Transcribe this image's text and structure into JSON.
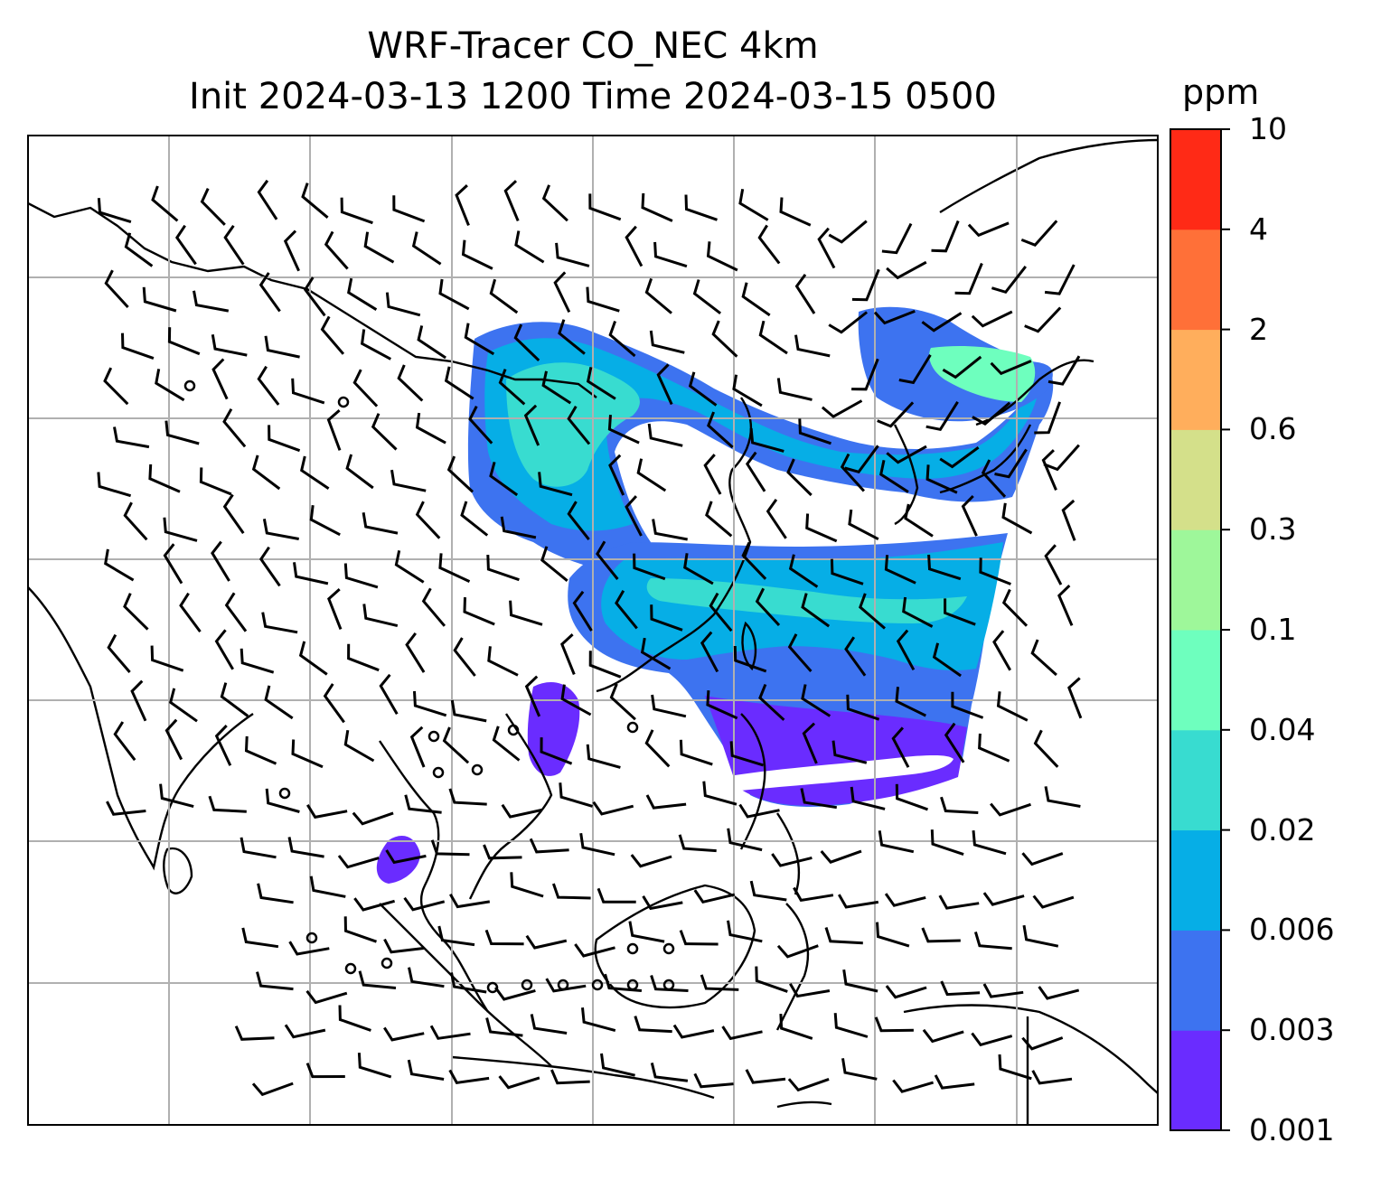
{
  "title": {
    "line1": "WRF-Tracer CO_NEC 4km",
    "line2": "Init 2024-03-13 1200 Time 2024-03-15 0500"
  },
  "colorbar": {
    "units": "ppm",
    "levels": [
      "0.001",
      "0.003",
      "0.006",
      "0.02",
      "0.04",
      "0.1",
      "0.3",
      "0.6",
      "2",
      "4",
      "10"
    ],
    "colors": [
      "#6a2cff",
      "#3d73f0",
      "#06aee6",
      "#38dcd0",
      "#6effbe",
      "#9ef79a",
      "#d4e08a",
      "#ffae5c",
      "#ff7038",
      "#ff2a16"
    ]
  },
  "map": {
    "gridlines": true,
    "gridline_color": "#b0b0b0",
    "coastline_color": "#000000",
    "plume_colors": {
      "faint": "#6a2cff",
      "low": "#3d73f0",
      "mid": "#06aee6",
      "high": "#38dcd0",
      "peak": "#6effbe"
    },
    "wind_barbs": true
  }
}
